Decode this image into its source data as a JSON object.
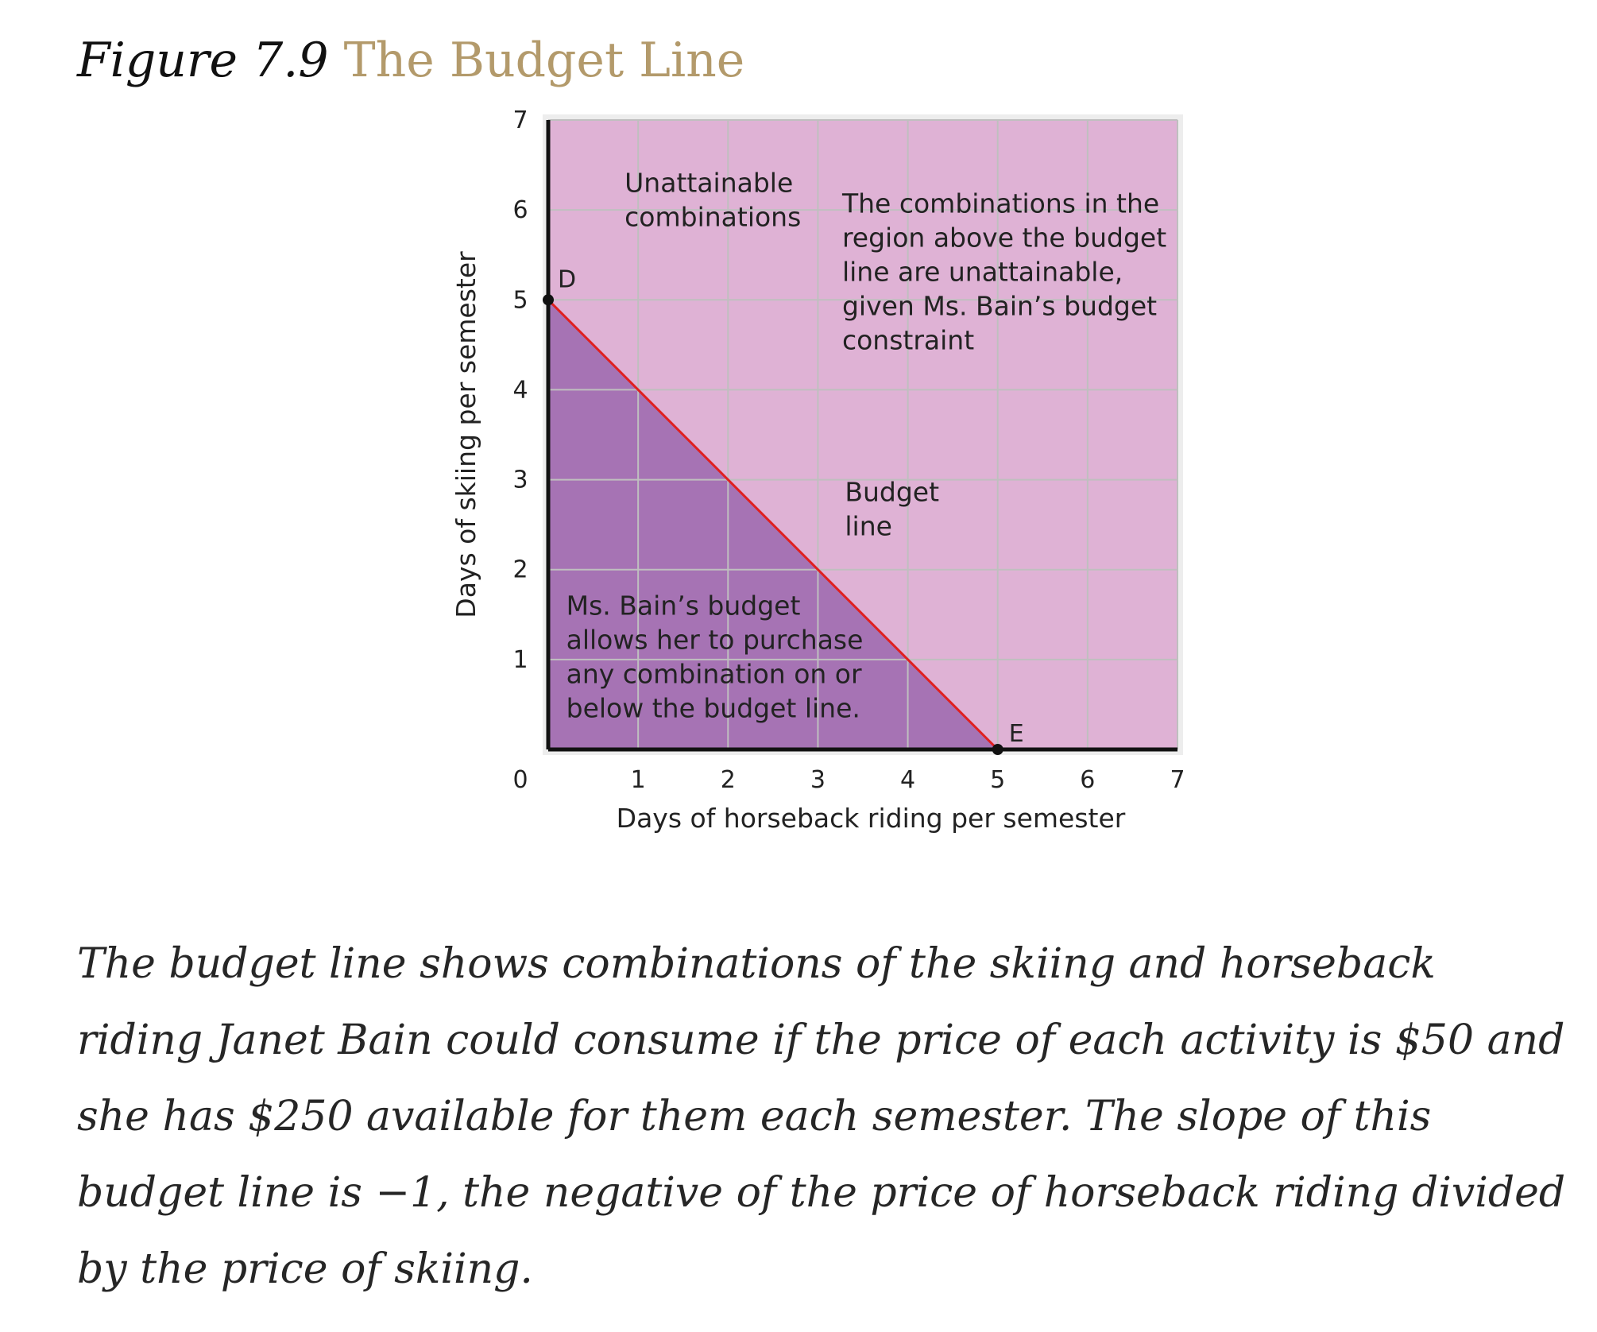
{
  "figure": {
    "number": "Figure 7.9",
    "title": "The Budget Line"
  },
  "colors": {
    "plot_background": "#dfb2d5",
    "attainable_region": "#a673b4",
    "grid": "#bfbfbf",
    "budget_line": "#e02020",
    "axis": "#111111",
    "title_accent": "#b39a6b"
  },
  "chart_data": {
    "type": "line",
    "xlabel": "Days of horseback riding per semester",
    "ylabel": "Days of skiing per semester",
    "xlim": [
      0,
      7
    ],
    "ylim": [
      0,
      7
    ],
    "xticks": [
      0,
      1,
      2,
      3,
      4,
      5,
      6,
      7
    ],
    "yticks": [
      0,
      1,
      2,
      3,
      4,
      5,
      6,
      7
    ],
    "grid": true,
    "series": [
      {
        "name": "Budget line",
        "x": [
          0,
          5
        ],
        "y": [
          5,
          0
        ]
      }
    ],
    "points": [
      {
        "label": "D",
        "x": 0,
        "y": 5
      },
      {
        "label": "E",
        "x": 5,
        "y": 0
      }
    ],
    "regions": [
      {
        "name": "attainable",
        "polygon": [
          [
            0,
            0
          ],
          [
            0,
            5
          ],
          [
            5,
            0
          ]
        ]
      }
    ],
    "annotations": [
      {
        "key": "unattainable",
        "lines": [
          "Unattainable",
          "combinations"
        ],
        "x": 0.85,
        "y": 6.2
      },
      {
        "key": "explain_above",
        "lines": [
          "The combinations in the",
          "region above the budget",
          "line are unattainable,",
          "given Ms. Bain’s budget",
          "constraint"
        ],
        "x": 3.27,
        "y": 5.97
      },
      {
        "key": "budget_line_label",
        "lines": [
          "Budget",
          "line"
        ],
        "x": 3.3,
        "y": 2.76
      },
      {
        "key": "explain_below",
        "lines": [
          "Ms. Bain’s budget",
          "allows her to purchase",
          "any combination on or",
          "below the budget line."
        ],
        "x": 0.2,
        "y": 1.5
      }
    ]
  },
  "caption": "The budget line shows combinations of the skiing and horseback riding Janet Bain could consume if the price of each activity is $50 and she has $250 available for them each semester. The slope of this budget line is −1, the negative of the price of horseback riding divided by the price of skiing."
}
